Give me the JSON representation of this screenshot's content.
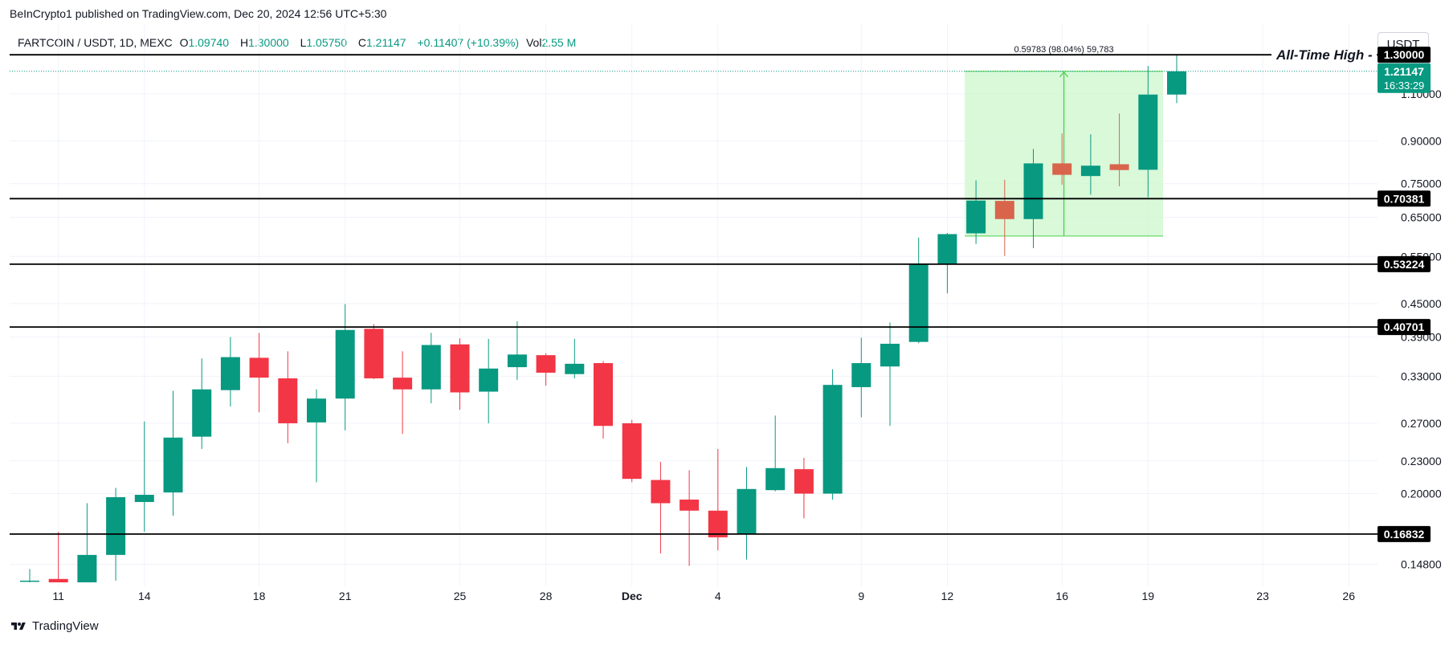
{
  "header": {
    "published": "BeInCrypto1 published on TradingView.com, Dec 20, 2024 12:56 UTC+5:30"
  },
  "legend": {
    "symbol": "FARTCOIN / USDT, 1D, MEXC",
    "o_label": "O",
    "o_value": "1.09740",
    "h_label": "H",
    "h_value": "1.30000",
    "l_label": "L",
    "l_value": "1.05750",
    "c_label": "C",
    "c_value": "1.21147",
    "change": "+0.11407 (+10.39%)",
    "vol_label": "Vol",
    "vol_value": "2.55 M"
  },
  "currency_button": "USDT",
  "footer": {
    "brand": "TradingView",
    "logo_icon": "tradingview-logo-icon"
  },
  "colors": {
    "up": "#089981",
    "down": "#f23645",
    "down_muted": "#d9644c",
    "range_fill": "#ccf7cc",
    "range_border": "#4cd04c",
    "level_line": "#000000",
    "price_label": "#089981"
  },
  "chart_data": {
    "type": "candlestick",
    "title": "",
    "y_scale": "log",
    "ylim": [
      0.137,
      1.36
    ],
    "y_ticks": [
      "0.14800",
      "0.20000",
      "0.23000",
      "0.27000",
      "0.33000",
      "0.39000",
      "0.45000",
      "0.55000",
      "0.65000",
      "0.75000",
      "0.90000",
      "1.10000"
    ],
    "x_ticks": [
      {
        "date": "2024-11-11",
        "label": "11",
        "bold": false
      },
      {
        "date": "2024-11-14",
        "label": "14",
        "bold": false
      },
      {
        "date": "2024-11-18",
        "label": "18",
        "bold": false
      },
      {
        "date": "2024-11-21",
        "label": "21",
        "bold": false
      },
      {
        "date": "2024-11-25",
        "label": "25",
        "bold": false
      },
      {
        "date": "2024-11-28",
        "label": "28",
        "bold": false
      },
      {
        "date": "2024-12-01",
        "label": "Dec",
        "bold": true
      },
      {
        "date": "2024-12-04",
        "label": "4",
        "bold": false
      },
      {
        "date": "2024-12-09",
        "label": "9",
        "bold": false
      },
      {
        "date": "2024-12-12",
        "label": "12",
        "bold": false
      },
      {
        "date": "2024-12-16",
        "label": "16",
        "bold": false
      },
      {
        "date": "2024-12-19",
        "label": "19",
        "bold": false
      },
      {
        "date": "2024-12-23",
        "label": "23",
        "bold": false
      },
      {
        "date": "2024-12-26",
        "label": "26",
        "bold": false
      }
    ],
    "candles": [
      {
        "date": "2024-11-10",
        "o": 0.138,
        "h": 0.145,
        "l": 0.137,
        "c": 0.138
      },
      {
        "date": "2024-11-11",
        "o": 0.139,
        "h": 0.17,
        "l": 0.137,
        "c": 0.137
      },
      {
        "date": "2024-11-12",
        "o": 0.137,
        "h": 0.192,
        "l": 0.137,
        "c": 0.154
      },
      {
        "date": "2024-11-13",
        "o": 0.154,
        "h": 0.205,
        "l": 0.138,
        "c": 0.197
      },
      {
        "date": "2024-11-14",
        "o": 0.193,
        "h": 0.272,
        "l": 0.17,
        "c": 0.199
      },
      {
        "date": "2024-11-15",
        "o": 0.201,
        "h": 0.31,
        "l": 0.182,
        "c": 0.254
      },
      {
        "date": "2024-11-16",
        "o": 0.255,
        "h": 0.356,
        "l": 0.242,
        "c": 0.312
      },
      {
        "date": "2024-11-17",
        "o": 0.311,
        "h": 0.39,
        "l": 0.29,
        "c": 0.358
      },
      {
        "date": "2024-11-18",
        "o": 0.357,
        "h": 0.397,
        "l": 0.283,
        "c": 0.328
      },
      {
        "date": "2024-11-19",
        "o": 0.327,
        "h": 0.367,
        "l": 0.248,
        "c": 0.27
      },
      {
        "date": "2024-11-20",
        "o": 0.271,
        "h": 0.312,
        "l": 0.21,
        "c": 0.3
      },
      {
        "date": "2024-11-21",
        "o": 0.3,
        "h": 0.449,
        "l": 0.262,
        "c": 0.402
      },
      {
        "date": "2024-11-22",
        "o": 0.404,
        "h": 0.412,
        "l": 0.326,
        "c": 0.327
      },
      {
        "date": "2024-11-23",
        "o": 0.328,
        "h": 0.367,
        "l": 0.258,
        "c": 0.312
      },
      {
        "date": "2024-11-24",
        "o": 0.312,
        "h": 0.397,
        "l": 0.294,
        "c": 0.377
      },
      {
        "date": "2024-11-25",
        "o": 0.378,
        "h": 0.388,
        "l": 0.286,
        "c": 0.308
      },
      {
        "date": "2024-11-26",
        "o": 0.309,
        "h": 0.387,
        "l": 0.27,
        "c": 0.341
      },
      {
        "date": "2024-11-27",
        "o": 0.343,
        "h": 0.417,
        "l": 0.325,
        "c": 0.362
      },
      {
        "date": "2024-11-28",
        "o": 0.361,
        "h": 0.364,
        "l": 0.317,
        "c": 0.335
      },
      {
        "date": "2024-11-29",
        "o": 0.333,
        "h": 0.387,
        "l": 0.327,
        "c": 0.348
      },
      {
        "date": "2024-11-30",
        "o": 0.349,
        "h": 0.352,
        "l": 0.253,
        "c": 0.267
      },
      {
        "date": "2024-12-01",
        "o": 0.27,
        "h": 0.274,
        "l": 0.21,
        "c": 0.213
      },
      {
        "date": "2024-12-02",
        "o": 0.212,
        "h": 0.229,
        "l": 0.155,
        "c": 0.192
      },
      {
        "date": "2024-12-03",
        "o": 0.195,
        "h": 0.221,
        "l": 0.147,
        "c": 0.186
      },
      {
        "date": "2024-12-04",
        "o": 0.186,
        "h": 0.242,
        "l": 0.157,
        "c": 0.166
      },
      {
        "date": "2024-12-05",
        "o": 0.168,
        "h": 0.224,
        "l": 0.151,
        "c": 0.204
      },
      {
        "date": "2024-12-06",
        "o": 0.203,
        "h": 0.279,
        "l": 0.202,
        "c": 0.223
      },
      {
        "date": "2024-12-07",
        "o": 0.222,
        "h": 0.233,
        "l": 0.18,
        "c": 0.2
      },
      {
        "date": "2024-12-08",
        "o": 0.2,
        "h": 0.34,
        "l": 0.195,
        "c": 0.318
      },
      {
        "date": "2024-12-09",
        "o": 0.315,
        "h": 0.389,
        "l": 0.277,
        "c": 0.349
      },
      {
        "date": "2024-12-10",
        "o": 0.344,
        "h": 0.415,
        "l": 0.267,
        "c": 0.379
      },
      {
        "date": "2024-12-11",
        "o": 0.382,
        "h": 0.596,
        "l": 0.38,
        "c": 0.532
      },
      {
        "date": "2024-12-12",
        "o": 0.533,
        "h": 0.608,
        "l": 0.47,
        "c": 0.605
      },
      {
        "date": "2024-12-13",
        "o": 0.607,
        "h": 0.761,
        "l": 0.58,
        "c": 0.698
      },
      {
        "date": "2024-12-14",
        "o": 0.697,
        "h": 0.763,
        "l": 0.551,
        "c": 0.645
      },
      {
        "date": "2024-12-15",
        "o": 0.645,
        "h": 0.87,
        "l": 0.57,
        "c": 0.818
      },
      {
        "date": "2024-12-16",
        "o": 0.818,
        "h": 0.929,
        "l": 0.747,
        "c": 0.779
      },
      {
        "date": "2024-12-17",
        "o": 0.775,
        "h": 0.926,
        "l": 0.716,
        "c": 0.81
      },
      {
        "date": "2024-12-18",
        "o": 0.815,
        "h": 1.012,
        "l": 0.742,
        "c": 0.795
      },
      {
        "date": "2024-12-19",
        "o": 0.796,
        "h": 1.24,
        "l": 0.708,
        "c": 1.097
      },
      {
        "date": "2024-12-20",
        "o": 1.097,
        "h": 1.3,
        "l": 1.0575,
        "c": 1.21147
      }
    ],
    "levels": [
      {
        "label": "1.30000",
        "value": 1.3
      },
      {
        "label": "0.70381",
        "value": 0.70381
      },
      {
        "label": "0.53224",
        "value": 0.53224
      },
      {
        "label": "0.40701",
        "value": 0.40701
      },
      {
        "label": "0.16832",
        "value": 0.16832
      }
    ],
    "ath_annotation": "All-Time High -",
    "current_price": {
      "value": 1.21147,
      "label": "1.21147",
      "countdown": "16:33:29"
    },
    "range_measure": {
      "label": "0.59783 (98.04%) 59,783",
      "from_date": "2024-12-13",
      "to_date": "2024-12-20",
      "low": 0.6,
      "high": 1.21147
    }
  }
}
